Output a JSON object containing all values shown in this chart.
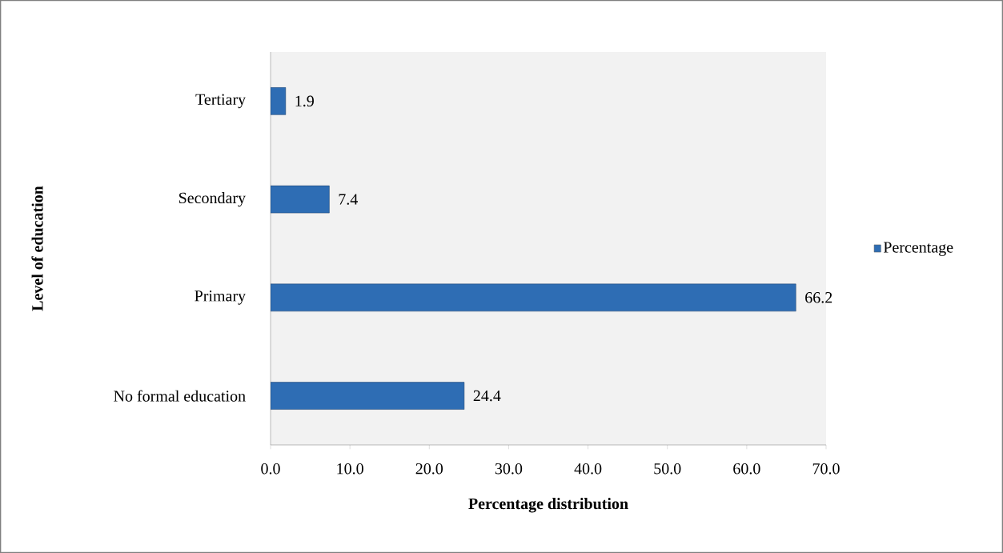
{
  "chart_data": {
    "type": "bar",
    "orientation": "horizontal",
    "xlabel": "Percentage distribution",
    "ylabel": "Level of education",
    "categories": [
      "Tertiary",
      "Secondary",
      "Primary",
      "No formal education"
    ],
    "series": [
      {
        "name": "Percentage",
        "color": "#2e6db4",
        "values": [
          1.9,
          7.4,
          66.2,
          24.4
        ]
      }
    ],
    "xlim": [
      0,
      70
    ],
    "xticks": [
      {
        "value": 0,
        "label": "0.0"
      },
      {
        "value": 10,
        "label": "10.0"
      },
      {
        "value": 20,
        "label": "20.0"
      },
      {
        "value": 30,
        "label": "30.0"
      },
      {
        "value": 40,
        "label": "40.0"
      },
      {
        "value": 50,
        "label": "50.0"
      },
      {
        "value": 60,
        "label": "60.0"
      },
      {
        "value": 70,
        "label": "70.0"
      }
    ],
    "data_labels": true,
    "legend": "right"
  }
}
